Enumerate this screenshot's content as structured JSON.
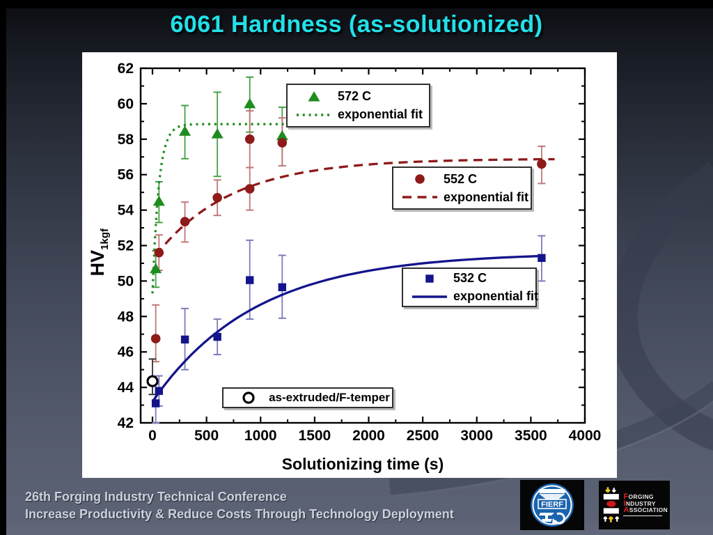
{
  "title": "6061 Hardness (as-solutionized)",
  "footer": {
    "line1": "26th Forging Industry Technical Conference",
    "line2": "Increase Productivity & Reduce Costs Through Technology Deployment"
  },
  "logos": {
    "fierf": {
      "label": "FIERF",
      "ring_color": "#1b63ae",
      "box_color": "#060606"
    },
    "fia": {
      "word1_initial": "F",
      "word1_rest": "ORGING",
      "word2_initial": "I",
      "word2_rest": "NDUSTRY",
      "word3_initial": "A",
      "word3_rest": "SSOCIATION",
      "accent_red": "#e02020",
      "accent_yellow": "#f0c020",
      "box_color": "#060606"
    }
  },
  "chart_data": {
    "type": "scatter",
    "title": "",
    "xlabel": "Solutionizing time (s)",
    "ylabel": "HV",
    "ylabel_sub": "1kgf",
    "xlim": [
      -110,
      4000
    ],
    "ylim": [
      42,
      62
    ],
    "xticks": [
      0,
      500,
      1000,
      1500,
      2000,
      2500,
      3000,
      3500,
      4000
    ],
    "x_minor_step": 250,
    "yticks": [
      42,
      44,
      46,
      48,
      50,
      52,
      54,
      56,
      58,
      60,
      62
    ],
    "y_minor_step": 1,
    "grid": false,
    "legend_position": "inside boxes",
    "series": [
      {
        "name": "572 C",
        "fit_label": "exponential fit",
        "marker": "triangle",
        "line_style": "dotted",
        "color": "#1e8c1e",
        "error_color": "#46a046",
        "points": [
          {
            "x": 30,
            "y": 50.7,
            "ep": 1.0,
            "em": 1.05
          },
          {
            "x": 60,
            "y": 54.5,
            "ep": 1.1,
            "em": 1.2
          },
          {
            "x": 300,
            "y": 58.45,
            "ep": 1.45,
            "em": 1.55
          },
          {
            "x": 600,
            "y": 58.3,
            "ep": 2.35,
            "em": 2.4
          },
          {
            "x": 900,
            "y": 60.0,
            "ep": 1.5,
            "em": 1.6
          },
          {
            "x": 1200,
            "y": 58.2,
            "ep": 1.6,
            "em": 1.7
          }
        ],
        "fit": {
          "A": 58.85,
          "B": 9.55,
          "tau": 58,
          "x0": 0,
          "x1": 1230
        }
      },
      {
        "name": "552 C",
        "fit_label": "exponential fit",
        "marker": "circle",
        "line_style": "dashed",
        "color": "#8e1a1a",
        "error_color": "#c17777",
        "points": [
          {
            "x": 30,
            "y": 46.75,
            "ep": 1.9,
            "em": 1.3
          },
          {
            "x": 60,
            "y": 51.6,
            "ep": 1.0,
            "em": 1.0
          },
          {
            "x": 300,
            "y": 53.35,
            "ep": 1.1,
            "em": 1.15
          },
          {
            "x": 600,
            "y": 54.7,
            "ep": 1.0,
            "em": 1.0
          },
          {
            "x": 900,
            "y": 55.2,
            "ep": 1.2,
            "em": 1.2
          },
          {
            "x": 900,
            "y": 58.0,
            "ep": 1.6,
            "em": 1.6
          },
          {
            "x": 1200,
            "y": 57.8,
            "ep": 1.4,
            "em": 1.3
          },
          {
            "x": 3600,
            "y": 56.6,
            "ep": 1.0,
            "em": 1.1
          }
        ],
        "fit": {
          "A": 56.9,
          "B": 5.7,
          "tau": 700,
          "x0": 30,
          "x1": 3720
        }
      },
      {
        "name": "532 C",
        "fit_label": "exponential fit",
        "marker": "square",
        "line_style": "solid",
        "color": "#14148c",
        "error_color": "#7b7bbd",
        "points": [
          {
            "x": 30,
            "y": 43.1,
            "ep": 1.1,
            "em": 1.1
          },
          {
            "x": 60,
            "y": 43.8,
            "ep": 0.85,
            "em": 0.85
          },
          {
            "x": 300,
            "y": 46.7,
            "ep": 1.75,
            "em": 1.7
          },
          {
            "x": 600,
            "y": 46.85,
            "ep": 1.0,
            "em": 1.0
          },
          {
            "x": 900,
            "y": 50.05,
            "ep": 2.25,
            "em": 2.2
          },
          {
            "x": 1200,
            "y": 49.65,
            "ep": 1.8,
            "em": 1.75
          },
          {
            "x": 3600,
            "y": 51.3,
            "ep": 1.25,
            "em": 1.3
          }
        ],
        "fit": {
          "A": 51.6,
          "B": 8.4,
          "tau": 950,
          "x0": 0,
          "x1": 3600
        }
      },
      {
        "name": "as-extruded/F-temper",
        "marker": "open-circle",
        "line_style": "none",
        "color": "#000000",
        "error_color": "#333333",
        "points": [
          {
            "x": 0,
            "y": 44.35,
            "ep": 1.25,
            "em": 0.75
          }
        ]
      }
    ]
  }
}
